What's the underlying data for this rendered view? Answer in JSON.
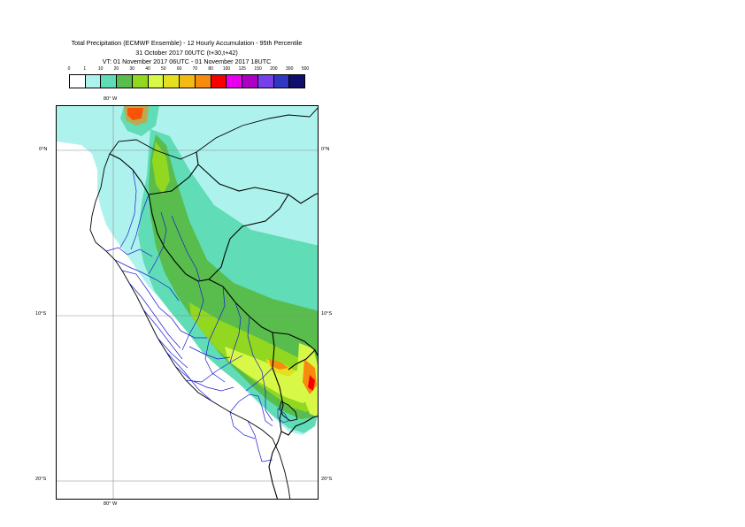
{
  "title": {
    "line1": "Total Precipitation (ECMWF Ensemble) - 12 Hourly Accumulation - 95th Percentile",
    "line2": "31 October 2017 00UTC (t+30,t+42)",
    "line3": "VT: 01 November 2017 06UTC - 01 November 2017 18UTC"
  },
  "scale": {
    "thresholds": [
      "0",
      "1",
      "10",
      "20",
      "30",
      "40",
      "50",
      "60",
      "70",
      "80",
      "100",
      "125",
      "150",
      "200",
      "300",
      "500"
    ],
    "colors": [
      "#ffffff",
      "#aef2ee",
      "#60dcb6",
      "#58bd4c",
      "#92d820",
      "#d8f848",
      "#e4df20",
      "#f2ba12",
      "#f88a0c",
      "#f80000",
      "#e800ee",
      "#ae00c4",
      "#7840ec",
      "#3038c2",
      "#10106c"
    ]
  },
  "map": {
    "labels": {
      "lon_top": "80° W",
      "lon_bottom": "80° W",
      "lat_0_left": "0°N",
      "lat_0_right": "0°N",
      "lat_10_left": "10°S",
      "lat_10_right": "10°S",
      "lat_20_left": "20°S",
      "lat_20_right": "20°S"
    }
  }
}
